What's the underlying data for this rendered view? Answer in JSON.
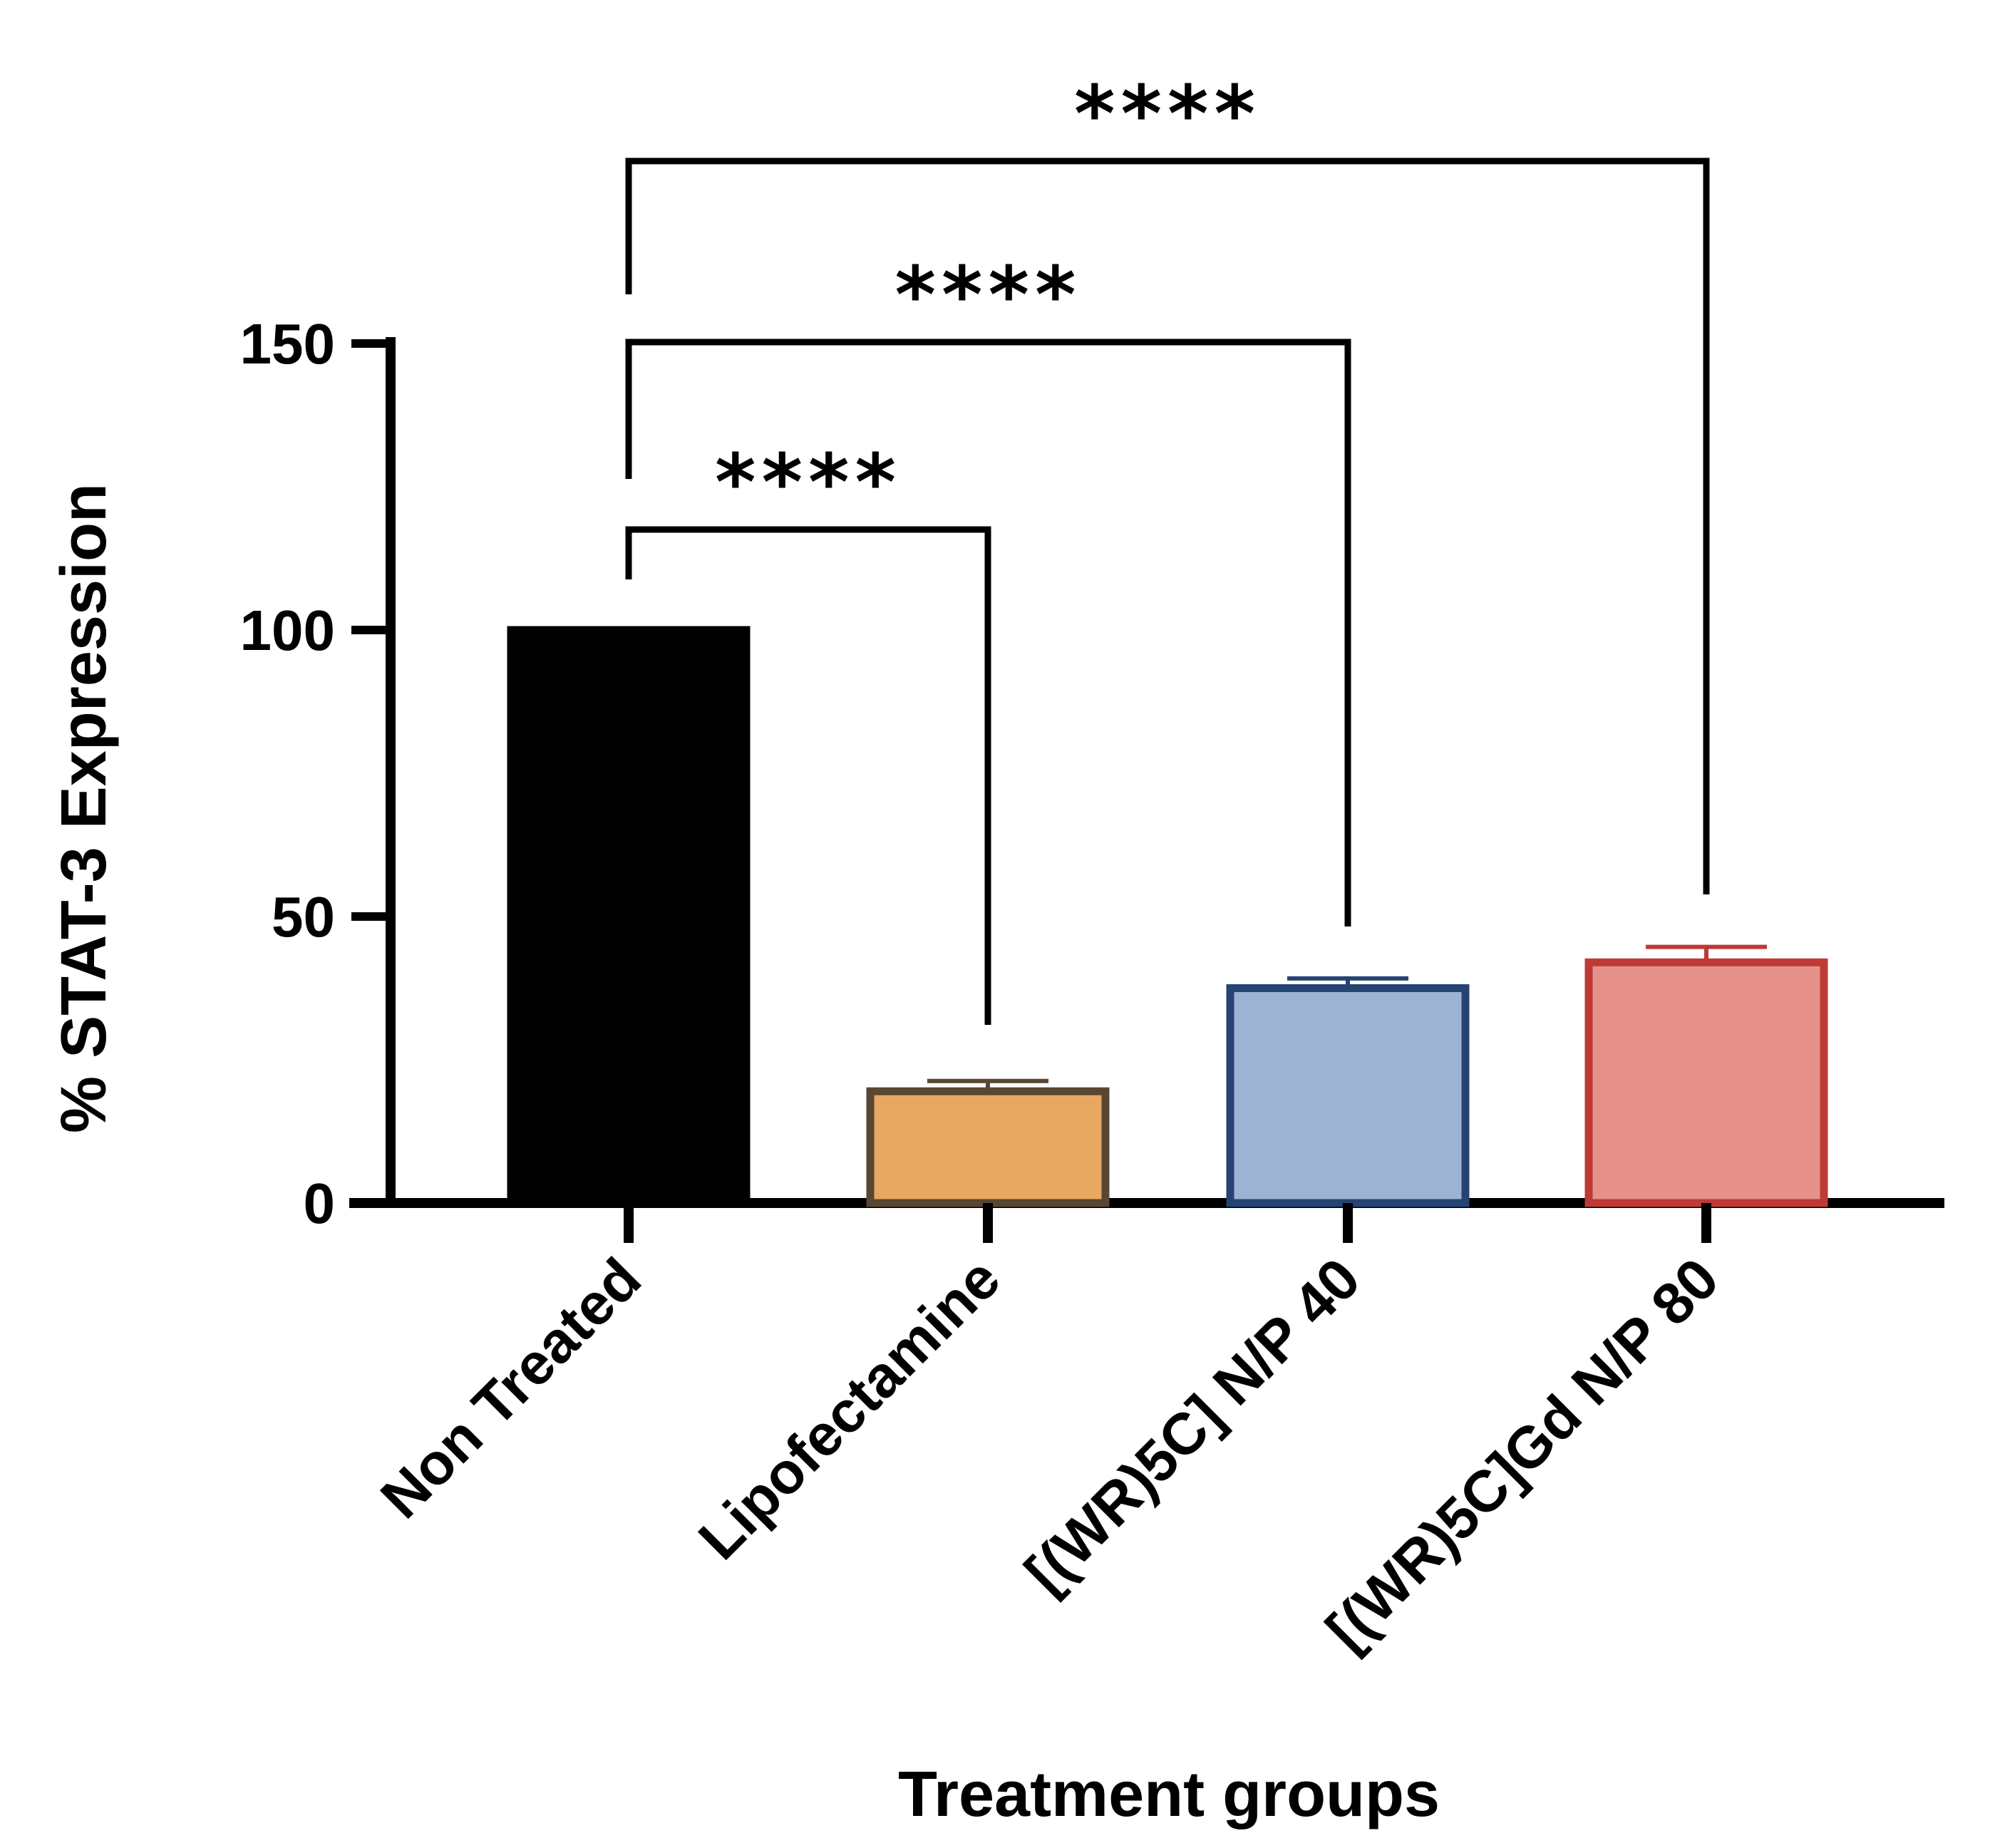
{
  "chart_data": {
    "type": "bar",
    "title": "",
    "xlabel": "Treatment groups",
    "ylabel": "% STAT-3 Expression",
    "ylim": [
      0,
      150
    ],
    "yticks": [
      0,
      50,
      100,
      150
    ],
    "grid": false,
    "legend": "none",
    "categories": [
      "Non Treated",
      "Lipofectamine",
      "[(WR)5C] N/P 40",
      "[(WR)5C]Gd N/P 80"
    ],
    "values": [
      100,
      19.5,
      37.5,
      42
    ],
    "errors": [
      0,
      1.8,
      1.7,
      2.7
    ],
    "fill_colors": [
      "#000000",
      "#E8A862",
      "#9DB3D3",
      "#E6918A"
    ],
    "edge_colors": [
      "#000000",
      "#594633",
      "#254471",
      "#BE3A34"
    ],
    "significance": [
      {
        "label": "****",
        "from": 0,
        "to": 1
      },
      {
        "label": "****",
        "from": 0,
        "to": 2
      },
      {
        "label": "****",
        "from": 0,
        "to": 3
      }
    ]
  }
}
